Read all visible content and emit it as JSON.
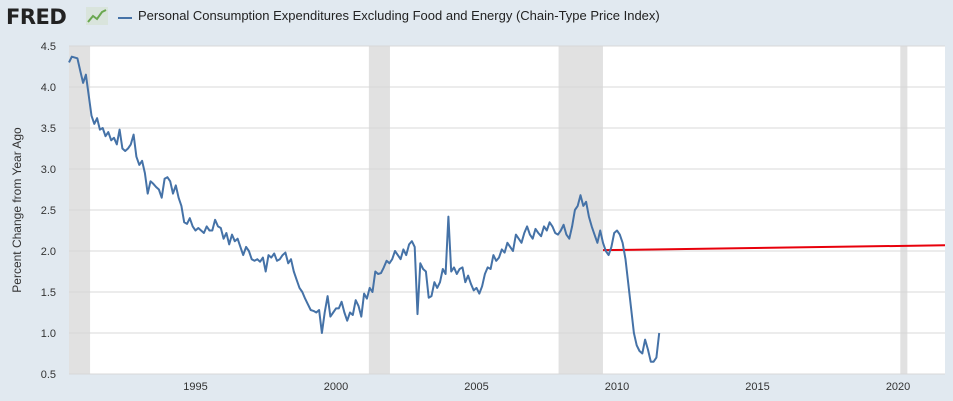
{
  "header": {
    "logo_text": "FRED",
    "logo_icon": "line-chart-icon",
    "series_title": "Personal Consumption Expenditures Excluding Food and Energy (Chain-Type Price Index)"
  },
  "chart_data": {
    "type": "line",
    "title": "Personal Consumption Expenditures Excluding Food and Energy (Chain-Type Price Index)",
    "ylabel": "Percent Change from Year Ago",
    "xlabel": "",
    "xlim": [
      1990.5,
      2021.67
    ],
    "ylim": [
      0.5,
      4.5
    ],
    "grid": "horizontal",
    "x_ticks": [
      "1995",
      "2000",
      "2005",
      "2010",
      "2015",
      "2020"
    ],
    "y_ticks": [
      "0.5",
      "1.0",
      "1.5",
      "2.0",
      "2.5",
      "3.0",
      "3.5",
      "4.0",
      "4.5"
    ],
    "colors": {
      "series": "#4572a7",
      "reference_line": "#e8000b",
      "recession": "#e1e1e1",
      "plot_bg": "#ffffff",
      "grid": "#d8d8d8"
    },
    "recessions": [
      [
        1990.5,
        1991.25
      ],
      [
        2001.17,
        2001.92
      ],
      [
        2007.92,
        2009.5
      ],
      [
        2020.08,
        2020.33
      ]
    ],
    "reference_line": {
      "x": [
        2009.5,
        2021.67
      ],
      "y": [
        2.01,
        2.07
      ]
    },
    "series": [
      {
        "name": "Personal Consumption Expenditures Excluding Food and Energy (Chain-Type Price Index)",
        "points": [
          [
            1990.5,
            4.3
          ],
          [
            1990.6,
            4.37
          ],
          [
            1990.8,
            4.35
          ],
          [
            1990.9,
            4.2
          ],
          [
            1991.0,
            4.05
          ],
          [
            1991.1,
            4.15
          ],
          [
            1991.2,
            3.9
          ],
          [
            1991.3,
            3.65
          ],
          [
            1991.4,
            3.55
          ],
          [
            1991.5,
            3.62
          ],
          [
            1991.6,
            3.48
          ],
          [
            1991.7,
            3.5
          ],
          [
            1991.8,
            3.4
          ],
          [
            1991.9,
            3.45
          ],
          [
            1992.0,
            3.35
          ],
          [
            1992.1,
            3.38
          ],
          [
            1992.2,
            3.3
          ],
          [
            1992.3,
            3.48
          ],
          [
            1992.4,
            3.25
          ],
          [
            1992.5,
            3.22
          ],
          [
            1992.6,
            3.25
          ],
          [
            1992.7,
            3.3
          ],
          [
            1992.8,
            3.42
          ],
          [
            1992.9,
            3.15
          ],
          [
            1993.0,
            3.05
          ],
          [
            1993.1,
            3.1
          ],
          [
            1993.2,
            2.95
          ],
          [
            1993.3,
            2.7
          ],
          [
            1993.4,
            2.85
          ],
          [
            1993.5,
            2.82
          ],
          [
            1993.6,
            2.78
          ],
          [
            1993.7,
            2.75
          ],
          [
            1993.8,
            2.65
          ],
          [
            1993.9,
            2.88
          ],
          [
            1994.0,
            2.9
          ],
          [
            1994.1,
            2.85
          ],
          [
            1994.2,
            2.7
          ],
          [
            1994.3,
            2.8
          ],
          [
            1994.4,
            2.65
          ],
          [
            1994.5,
            2.55
          ],
          [
            1994.6,
            2.35
          ],
          [
            1994.7,
            2.33
          ],
          [
            1994.8,
            2.4
          ],
          [
            1994.9,
            2.3
          ],
          [
            1995.0,
            2.25
          ],
          [
            1995.1,
            2.28
          ],
          [
            1995.2,
            2.25
          ],
          [
            1995.3,
            2.22
          ],
          [
            1995.4,
            2.3
          ],
          [
            1995.5,
            2.25
          ],
          [
            1995.6,
            2.25
          ],
          [
            1995.7,
            2.38
          ],
          [
            1995.8,
            2.3
          ],
          [
            1995.9,
            2.28
          ],
          [
            1996.0,
            2.15
          ],
          [
            1996.1,
            2.22
          ],
          [
            1996.2,
            2.08
          ],
          [
            1996.3,
            2.2
          ],
          [
            1996.4,
            2.12
          ],
          [
            1996.5,
            2.15
          ],
          [
            1996.6,
            2.05
          ],
          [
            1996.7,
            1.95
          ],
          [
            1996.8,
            2.05
          ],
          [
            1996.9,
            2.0
          ],
          [
            1997.0,
            1.9
          ],
          [
            1997.1,
            1.88
          ],
          [
            1997.2,
            1.9
          ],
          [
            1997.3,
            1.87
          ],
          [
            1997.4,
            1.92
          ],
          [
            1997.5,
            1.75
          ],
          [
            1997.6,
            1.95
          ],
          [
            1997.7,
            1.92
          ],
          [
            1997.8,
            1.97
          ],
          [
            1997.9,
            1.88
          ],
          [
            1998.0,
            1.9
          ],
          [
            1998.1,
            1.95
          ],
          [
            1998.2,
            1.98
          ],
          [
            1998.3,
            1.85
          ],
          [
            1998.4,
            1.9
          ],
          [
            1998.5,
            1.75
          ],
          [
            1998.6,
            1.65
          ],
          [
            1998.7,
            1.55
          ],
          [
            1998.8,
            1.5
          ],
          [
            1998.9,
            1.42
          ],
          [
            1999.0,
            1.35
          ],
          [
            1999.1,
            1.28
          ],
          [
            1999.2,
            1.27
          ],
          [
            1999.3,
            1.25
          ],
          [
            1999.4,
            1.28
          ],
          [
            1999.5,
            1.0
          ],
          [
            1999.6,
            1.25
          ],
          [
            1999.7,
            1.45
          ],
          [
            1999.8,
            1.2
          ],
          [
            1999.9,
            1.25
          ],
          [
            2000.0,
            1.3
          ],
          [
            2000.1,
            1.3
          ],
          [
            2000.2,
            1.38
          ],
          [
            2000.3,
            1.25
          ],
          [
            2000.4,
            1.15
          ],
          [
            2000.5,
            1.25
          ],
          [
            2000.6,
            1.22
          ],
          [
            2000.7,
            1.4
          ],
          [
            2000.8,
            1.33
          ],
          [
            2000.9,
            1.2
          ],
          [
            2001.0,
            1.48
          ],
          [
            2001.1,
            1.42
          ],
          [
            2001.2,
            1.55
          ],
          [
            2001.3,
            1.5
          ],
          [
            2001.4,
            1.75
          ],
          [
            2001.5,
            1.72
          ],
          [
            2001.6,
            1.73
          ],
          [
            2001.7,
            1.8
          ],
          [
            2001.8,
            1.88
          ],
          [
            2001.9,
            1.85
          ],
          [
            2002.0,
            1.9
          ],
          [
            2002.1,
            2.0
          ],
          [
            2002.2,
            1.95
          ],
          [
            2002.3,
            1.9
          ],
          [
            2002.4,
            2.02
          ],
          [
            2002.5,
            1.95
          ],
          [
            2002.6,
            2.08
          ],
          [
            2002.7,
            2.12
          ],
          [
            2002.8,
            2.05
          ],
          [
            2002.9,
            1.23
          ],
          [
            2003.0,
            1.85
          ],
          [
            2003.1,
            1.78
          ],
          [
            2003.2,
            1.75
          ],
          [
            2003.3,
            1.43
          ],
          [
            2003.4,
            1.45
          ],
          [
            2003.5,
            1.62
          ],
          [
            2003.6,
            1.55
          ],
          [
            2003.7,
            1.62
          ],
          [
            2003.8,
            1.78
          ],
          [
            2003.9,
            1.72
          ],
          [
            2004.0,
            2.42
          ],
          [
            2004.1,
            1.75
          ],
          [
            2004.2,
            1.8
          ],
          [
            2004.3,
            1.72
          ],
          [
            2004.4,
            1.78
          ],
          [
            2004.5,
            1.8
          ],
          [
            2004.6,
            1.62
          ],
          [
            2004.7,
            1.7
          ],
          [
            2004.8,
            1.6
          ],
          [
            2004.9,
            1.52
          ],
          [
            2005.0,
            1.55
          ],
          [
            2005.1,
            1.48
          ],
          [
            2005.2,
            1.57
          ],
          [
            2005.3,
            1.72
          ],
          [
            2005.4,
            1.8
          ],
          [
            2005.5,
            1.78
          ],
          [
            2005.6,
            1.95
          ],
          [
            2005.7,
            1.88
          ],
          [
            2005.8,
            1.92
          ],
          [
            2005.9,
            2.02
          ],
          [
            2006.0,
            1.98
          ],
          [
            2006.1,
            2.1
          ],
          [
            2006.2,
            2.05
          ],
          [
            2006.3,
            2.0
          ],
          [
            2006.4,
            2.2
          ],
          [
            2006.5,
            2.15
          ],
          [
            2006.6,
            2.1
          ],
          [
            2006.7,
            2.22
          ],
          [
            2006.8,
            2.3
          ],
          [
            2006.9,
            2.2
          ],
          [
            2007.0,
            2.15
          ],
          [
            2007.1,
            2.27
          ],
          [
            2007.2,
            2.22
          ],
          [
            2007.3,
            2.18
          ],
          [
            2007.4,
            2.3
          ],
          [
            2007.5,
            2.25
          ],
          [
            2007.6,
            2.35
          ],
          [
            2007.7,
            2.3
          ],
          [
            2007.8,
            2.22
          ],
          [
            2007.9,
            2.2
          ],
          [
            2008.0,
            2.25
          ],
          [
            2008.1,
            2.32
          ],
          [
            2008.2,
            2.2
          ],
          [
            2008.3,
            2.15
          ],
          [
            2008.4,
            2.3
          ],
          [
            2008.5,
            2.5
          ],
          [
            2008.6,
            2.55
          ],
          [
            2008.7,
            2.68
          ],
          [
            2008.8,
            2.55
          ],
          [
            2008.9,
            2.6
          ],
          [
            2009.0,
            2.42
          ],
          [
            2009.1,
            2.3
          ],
          [
            2009.2,
            2.2
          ],
          [
            2009.3,
            2.1
          ],
          [
            2009.4,
            2.25
          ],
          [
            2009.5,
            2.1
          ],
          [
            2009.6,
            2.0
          ],
          [
            2009.7,
            1.95
          ],
          [
            2009.8,
            2.05
          ],
          [
            2009.9,
            2.22
          ],
          [
            2010.0,
            2.25
          ],
          [
            2010.1,
            2.2
          ],
          [
            2010.2,
            2.1
          ],
          [
            2010.3,
            1.9
          ],
          [
            2010.4,
            1.6
          ],
          [
            2010.5,
            1.3
          ],
          [
            2010.6,
            1.0
          ],
          [
            2010.7,
            0.85
          ],
          [
            2010.8,
            0.78
          ],
          [
            2010.9,
            0.75
          ],
          [
            2011.0,
            0.92
          ],
          [
            2011.1,
            0.8
          ],
          [
            2011.2,
            0.65
          ],
          [
            2011.3,
            0.65
          ],
          [
            2011.4,
            0.7
          ],
          [
            2011.5,
            1.0
          ]
        ]
      }
    ]
  }
}
